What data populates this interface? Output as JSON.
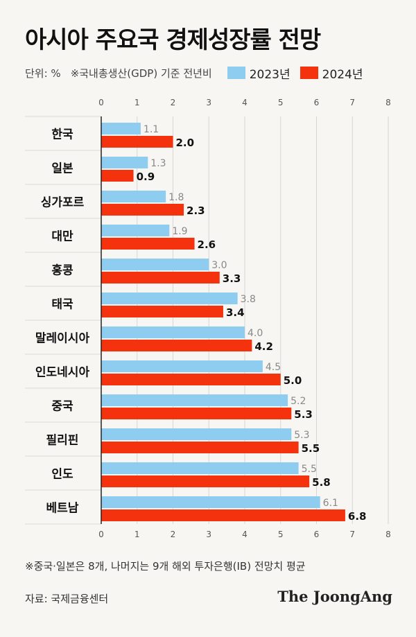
{
  "title": "아시아 주요국 경제성장률 전망",
  "unit_label": "단위: %",
  "basis_note": "※국내총생산(GDP) 기준 전년비",
  "footnote": "※중국·일본은 8개, 나머지는 9개 해외 투자은행(IB) 전망치 평균",
  "source": "자료: 국제금융센터",
  "logo_text": "The JoongAng",
  "colors": {
    "series_2023": "#8fcdf0",
    "series_2024": "#f4330e",
    "axis_line": "#222222",
    "grid": "#d6d6d6",
    "separator": "#d9d9d9"
  },
  "chart_data": {
    "type": "bar",
    "orientation": "horizontal",
    "categories": [
      "한국",
      "일본",
      "싱가포르",
      "대만",
      "홍콩",
      "태국",
      "말레이시아",
      "인도네시아",
      "중국",
      "필리핀",
      "인도",
      "베트남"
    ],
    "series": [
      {
        "name": "2023년",
        "values": [
          1.1,
          1.3,
          1.8,
          1.9,
          3.0,
          3.8,
          4.0,
          4.5,
          5.2,
          5.3,
          5.5,
          6.1
        ]
      },
      {
        "name": "2024년",
        "values": [
          2.0,
          0.9,
          2.3,
          2.6,
          3.3,
          3.4,
          4.2,
          5.0,
          5.3,
          5.5,
          5.8,
          6.8
        ]
      }
    ],
    "value_labels": [
      [
        "1.1",
        "1.3",
        "1.8",
        "1.9",
        "3.0",
        "3.8",
        "4.0",
        "4.5",
        "5.2",
        "5.3",
        "5.5",
        "6.1"
      ],
      [
        "2.0",
        "0.9",
        "2.3",
        "2.6",
        "3.3",
        "3.4",
        "4.2",
        "5.0",
        "5.3",
        "5.5",
        "5.8",
        "6.8"
      ]
    ],
    "x_ticks": [
      "0",
      "1",
      "2",
      "3",
      "4",
      "5",
      "6",
      "7",
      "8"
    ],
    "xlim": [
      0,
      8
    ],
    "grid": true,
    "legend_position": "top"
  }
}
